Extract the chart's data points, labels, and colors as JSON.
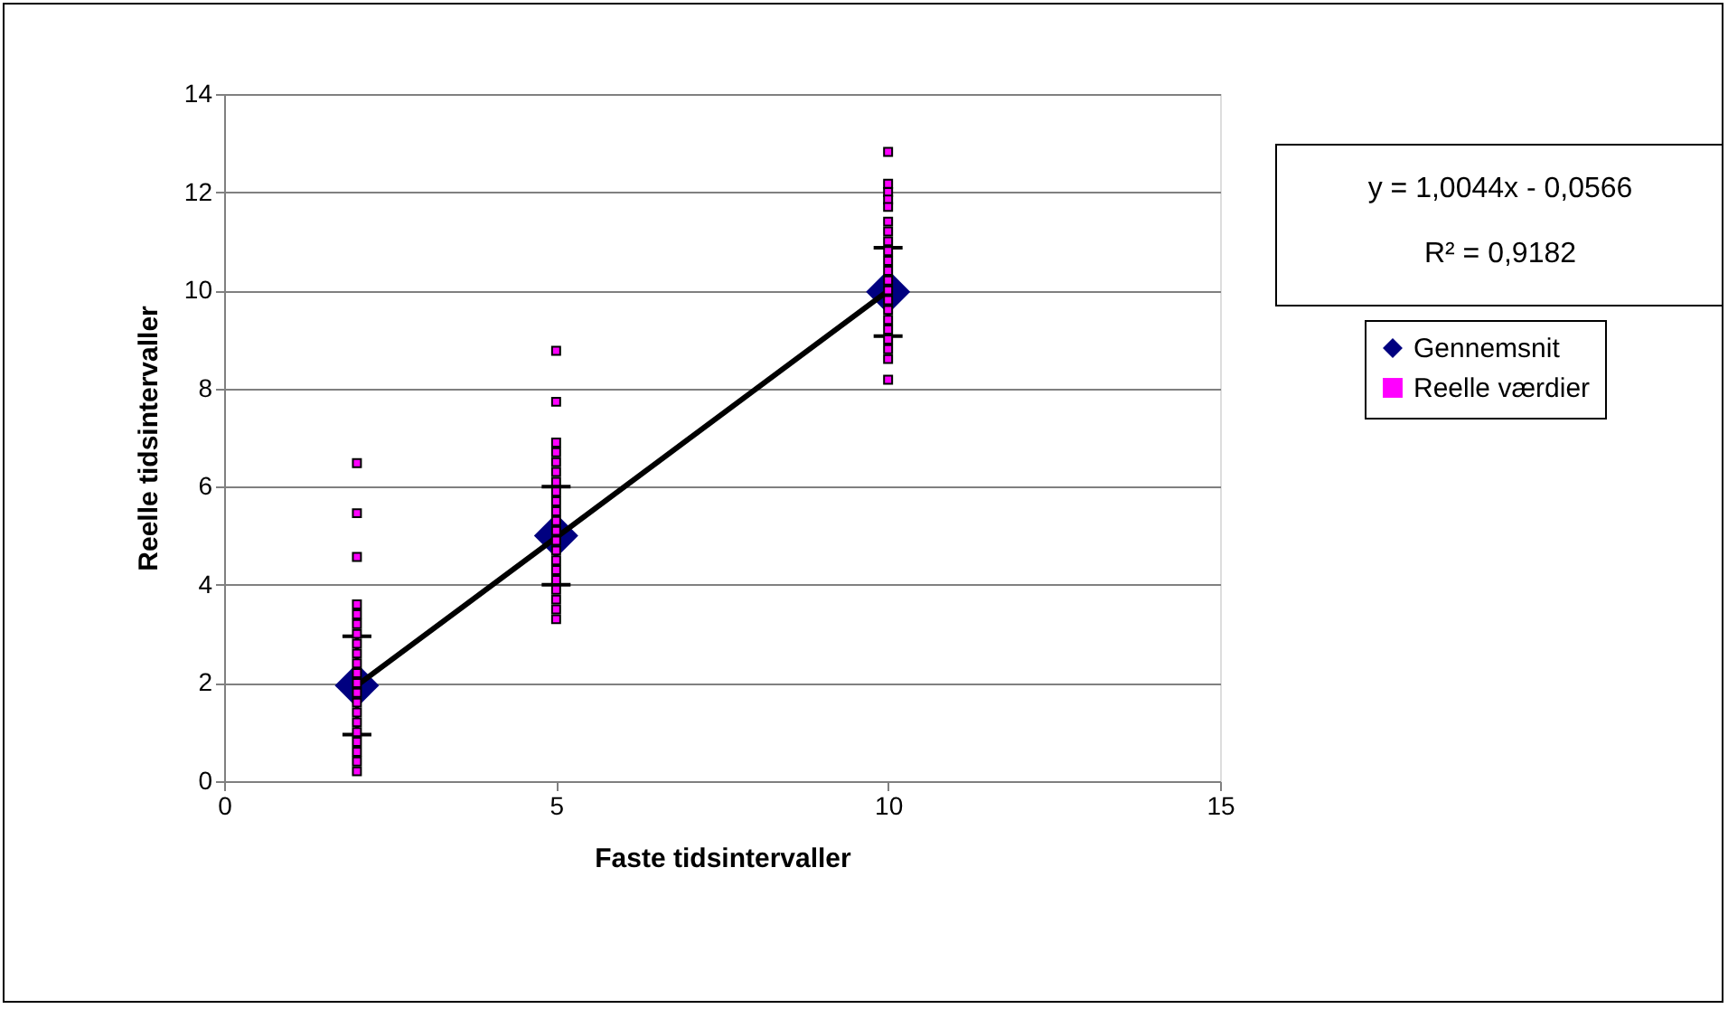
{
  "chart_data": {
    "type": "scatter",
    "xlabel": "Faste tidsintervaller",
    "ylabel": "Reelle tidsintervaller",
    "xlim": [
      0,
      15
    ],
    "xticks": [
      0,
      5,
      10,
      15
    ],
    "ylim": [
      0,
      14
    ],
    "yticks": [
      0,
      2,
      4,
      6,
      8,
      10,
      12,
      14
    ],
    "grid": "y",
    "legend": "right",
    "series": [
      {
        "name": "Gennemsnit",
        "marker": "diamond",
        "color": "#000080",
        "x": [
          2,
          5,
          10
        ],
        "values": [
          1.95,
          5.0,
          9.97
        ],
        "errors": [
          1.0,
          1.0,
          0.9
        ]
      },
      {
        "type": "line",
        "color": "#000000",
        "x": [
          2,
          10
        ],
        "values": [
          1.95,
          9.99
        ]
      },
      {
        "name": "Reelle værdier",
        "marker": "square",
        "color": "#ff00ff",
        "x": [
          2,
          2,
          2,
          2,
          2,
          2,
          2,
          2,
          2,
          2,
          2,
          2,
          2,
          2,
          2,
          2,
          2,
          2,
          2,
          2,
          2,
          5,
          5,
          5,
          5,
          5,
          5,
          5,
          5,
          5,
          5,
          5,
          5,
          5,
          5,
          5,
          5,
          5,
          5,
          5,
          5,
          5,
          10,
          10,
          10,
          10,
          10,
          10,
          10,
          10,
          10,
          10,
          10,
          10,
          10,
          10,
          10,
          10,
          10,
          10,
          10,
          10,
          10
        ],
        "values": [
          6.48,
          5.46,
          4.57,
          3.6,
          3.4,
          3.2,
          3.0,
          2.8,
          2.6,
          2.4,
          2.2,
          2.0,
          1.8,
          1.6,
          1.4,
          1.2,
          1.0,
          0.8,
          0.6,
          0.4,
          0.2,
          8.77,
          7.73,
          6.9,
          6.7,
          6.5,
          6.3,
          6.1,
          5.9,
          5.7,
          5.5,
          5.3,
          5.1,
          4.9,
          4.7,
          4.5,
          4.3,
          4.1,
          3.9,
          3.7,
          3.5,
          3.3,
          12.82,
          12.17,
          12.0,
          11.85,
          11.7,
          11.4,
          11.2,
          11.0,
          10.8,
          10.6,
          10.4,
          10.2,
          10.0,
          9.8,
          9.6,
          9.4,
          9.2,
          9.0,
          8.8,
          8.6,
          8.18
        ]
      }
    ],
    "annotations": [
      "y = 1,0044x - 0,0566",
      "R² = 0,9182"
    ]
  }
}
